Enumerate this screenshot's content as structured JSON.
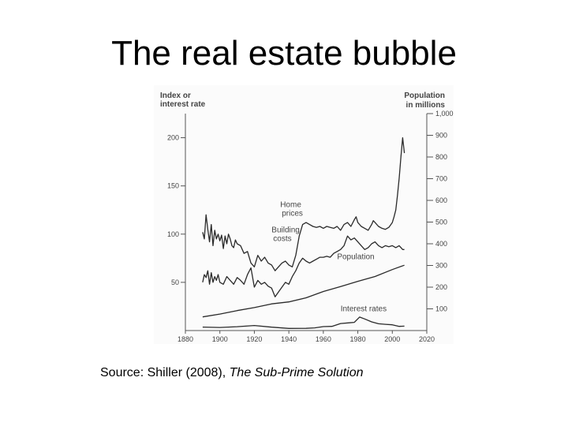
{
  "slide": {
    "title": "The real estate bubble"
  },
  "caption": {
    "prefix": "Source: Shiller (2008), ",
    "italic": "The Sub-Prime Solution"
  },
  "chart_data": {
    "type": "line",
    "xlim": [
      1880,
      2020
    ],
    "x_ticks": [
      "1880",
      "1900",
      "1920",
      "1940",
      "1960",
      "1980",
      "2000",
      "2020"
    ],
    "left_axis": {
      "label_line1": "Index or",
      "label_line2": "interest rate",
      "ticks": [
        "50",
        "100",
        "150",
        "200"
      ],
      "ylim": [
        0,
        225
      ]
    },
    "right_axis": {
      "label_line1": "Population",
      "label_line2": "in millions",
      "ticks": [
        "100",
        "200",
        "300",
        "400",
        "500",
        "600",
        "700",
        "800",
        "900",
        "1,000"
      ],
      "ylim": [
        0,
        1000
      ]
    },
    "grid": false,
    "series": [
      {
        "name": "Home prices",
        "label_line1": "Home",
        "label_line2": "prices",
        "axis": "left",
        "x": [
          1890,
          1891,
          1892,
          1893,
          1894,
          1895,
          1896,
          1897,
          1898,
          1899,
          1900,
          1901,
          1902,
          1903,
          1904,
          1905,
          1906,
          1907,
          1908,
          1909,
          1910,
          1912,
          1914,
          1916,
          1918,
          1920,
          1922,
          1924,
          1926,
          1928,
          1930,
          1932,
          1934,
          1936,
          1938,
          1940,
          1942,
          1944,
          1946,
          1948,
          1950,
          1952,
          1954,
          1956,
          1958,
          1960,
          1962,
          1964,
          1966,
          1968,
          1970,
          1972,
          1974,
          1976,
          1978,
          1979,
          1980,
          1982,
          1984,
          1986,
          1988,
          1989,
          1990,
          1992,
          1994,
          1996,
          1998,
          2000,
          2001,
          2002,
          2003,
          2004,
          2005,
          2006,
          2007
        ],
        "y": [
          102,
          95,
          120,
          105,
          92,
          110,
          88,
          104,
          95,
          100,
          93,
          99,
          85,
          98,
          90,
          100,
          95,
          88,
          86,
          94,
          90,
          88,
          80,
          82,
          70,
          66,
          78,
          72,
          76,
          70,
          68,
          62,
          66,
          70,
          72,
          68,
          66,
          78,
          98,
          110,
          112,
          110,
          108,
          107,
          108,
          106,
          108,
          107,
          106,
          108,
          104,
          110,
          112,
          108,
          115,
          118,
          112,
          108,
          106,
          104,
          110,
          114,
          112,
          108,
          106,
          105,
          107,
          112,
          118,
          125,
          140,
          158,
          180,
          200,
          184
        ]
      },
      {
        "name": "Building costs",
        "label_line1": "Building",
        "label_line2": "costs",
        "axis": "left",
        "x": [
          1890,
          1891,
          1892,
          1893,
          1894,
          1895,
          1896,
          1897,
          1898,
          1899,
          1900,
          1902,
          1904,
          1906,
          1908,
          1910,
          1912,
          1914,
          1916,
          1918,
          1920,
          1922,
          1924,
          1926,
          1928,
          1930,
          1932,
          1934,
          1936,
          1938,
          1940,
          1942,
          1944,
          1946,
          1948,
          1950,
          1952,
          1954,
          1956,
          1958,
          1960,
          1962,
          1964,
          1966,
          1968,
          1970,
          1972,
          1974,
          1976,
          1978,
          1980,
          1982,
          1984,
          1986,
          1988,
          1990,
          1992,
          1994,
          1996,
          1998,
          2000,
          2002,
          2004,
          2006,
          2007
        ],
        "y": [
          50,
          58,
          55,
          62,
          48,
          60,
          50,
          56,
          52,
          58,
          50,
          48,
          56,
          52,
          48,
          55,
          52,
          48,
          58,
          65,
          45,
          52,
          48,
          50,
          46,
          44,
          35,
          40,
          45,
          50,
          48,
          56,
          62,
          70,
          75,
          72,
          70,
          72,
          74,
          76,
          76,
          77,
          76,
          80,
          82,
          84,
          88,
          98,
          94,
          96,
          92,
          88,
          84,
          86,
          90,
          92,
          88,
          86,
          88,
          87,
          88,
          86,
          88,
          84,
          84
        ]
      },
      {
        "name": "Population",
        "label_line1": "Population",
        "label_line2": "",
        "axis": "right",
        "x": [
          1890,
          1900,
          1910,
          1920,
          1930,
          1940,
          1950,
          1960,
          1970,
          1980,
          1990,
          2000,
          2007
        ],
        "y": [
          63,
          76,
          92,
          106,
          123,
          132,
          151,
          180,
          203,
          227,
          249,
          281,
          301
        ]
      },
      {
        "name": "Interest rates",
        "label_line1": "Interest rates",
        "label_line2": "",
        "axis": "left",
        "x": [
          1890,
          1900,
          1910,
          1920,
          1930,
          1940,
          1950,
          1955,
          1960,
          1965,
          1970,
          1975,
          1978,
          1981,
          1984,
          1988,
          1992,
          1996,
          2000,
          2004,
          2007
        ],
        "y": [
          3.6,
          3.2,
          4.0,
          5.2,
          3.5,
          2.2,
          2.3,
          2.8,
          4.1,
          4.3,
          7.3,
          8.0,
          8.5,
          14.0,
          12.0,
          9.0,
          7.0,
          6.5,
          6.0,
          4.3,
          4.6
        ]
      }
    ]
  }
}
